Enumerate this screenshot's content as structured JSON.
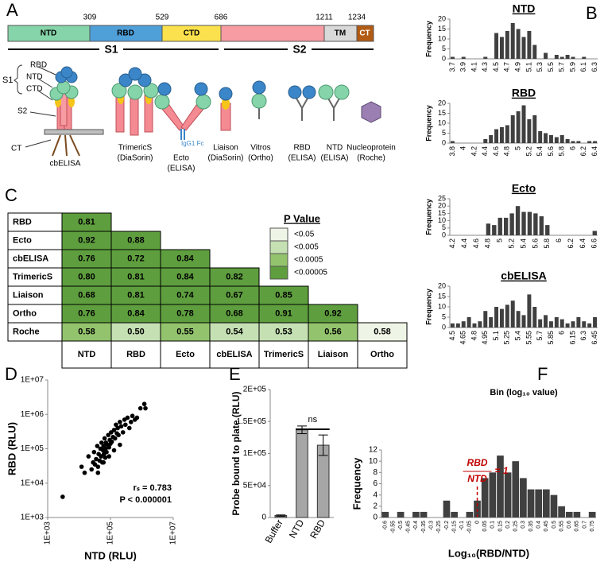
{
  "panel_labels": [
    "A",
    "B",
    "C",
    "D",
    "E",
    "F"
  ],
  "panel_a": {
    "residue_numbers": [
      309,
      529,
      686,
      1211,
      1234
    ],
    "domains": [
      "NTD",
      "RBD",
      "CTD",
      "TM",
      "CT"
    ],
    "regions": [
      "S1",
      "S2"
    ],
    "structure_labels": [
      "RBD",
      "NTD",
      "CTD",
      "S1",
      "S2",
      "CT"
    ],
    "fc_label": "IgG1 Fc",
    "assays": [
      {
        "name": "cbELISA"
      },
      {
        "name": "TrimericS",
        "maker": "(DiaSorin)"
      },
      {
        "name": "Ecto",
        "maker": "(ELISA)"
      },
      {
        "name": "Liaison",
        "maker": "(DiaSorin)"
      },
      {
        "name": "Vitros",
        "maker": "(Ortho)"
      },
      {
        "name": "RBD",
        "maker": "(ELISA)"
      },
      {
        "name": "NTD",
        "maker": "(ELISA)"
      },
      {
        "name": "Nucleoprotein",
        "maker": "(Roche)"
      }
    ]
  },
  "panel_c": {
    "columns": [
      "NTD",
      "RBD",
      "Ecto",
      "cbELISA",
      "TrimericS",
      "Liaison",
      "Ortho"
    ],
    "rows": [
      {
        "label": "RBD",
        "values": [
          "0.81"
        ],
        "colors": [
          "#5e9e3e"
        ]
      },
      {
        "label": "Ecto",
        "values": [
          "0.92",
          "0.88"
        ],
        "colors": [
          "#5e9e3e",
          "#5e9e3e"
        ]
      },
      {
        "label": "cbELISA",
        "values": [
          "0.76",
          "0.72",
          "0.84"
        ],
        "colors": [
          "#5e9e3e",
          "#5e9e3e",
          "#5e9e3e"
        ]
      },
      {
        "label": "TrimericS",
        "values": [
          "0.80",
          "0.81",
          "0.84",
          "0.82"
        ],
        "colors": [
          "#5e9e3e",
          "#5e9e3e",
          "#5e9e3e",
          "#5e9e3e"
        ]
      },
      {
        "label": "Liaison",
        "values": [
          "0.68",
          "0.81",
          "0.74",
          "0.67",
          "0.85"
        ],
        "colors": [
          "#5e9e3e",
          "#5e9e3e",
          "#5e9e3e",
          "#5e9e3e",
          "#5e9e3e"
        ]
      },
      {
        "label": "Ortho",
        "values": [
          "0.76",
          "0.84",
          "0.78",
          "0.68",
          "0.91",
          "0.92"
        ],
        "colors": [
          "#5e9e3e",
          "#5e9e3e",
          "#5e9e3e",
          "#5e9e3e",
          "#5e9e3e",
          "#5e9e3e"
        ]
      },
      {
        "label": "Roche",
        "values": [
          "0.58",
          "0.50",
          "0.55",
          "0.54",
          "0.53",
          "0.56",
          "0.58"
        ],
        "colors": [
          "#93c46d",
          "#c5e0b3",
          "#93c46d",
          "#c5e0b3",
          "#c5e0b3",
          "#93c46d",
          "#eef5e6"
        ]
      }
    ],
    "legend": {
      "title": "P Value",
      "items": [
        {
          "label": "<0.05",
          "color": "#eef5e6"
        },
        {
          "label": "<0.005",
          "color": "#c5e0b3"
        },
        {
          "label": "<0.0005",
          "color": "#93c46d"
        },
        {
          "label": "<0.00005",
          "color": "#5e9e3e"
        }
      ]
    }
  },
  "chart_data": [
    {
      "type": "bar",
      "title": "NTD",
      "y_label": "Frequency",
      "color": "#404040",
      "ylim": [
        0,
        20
      ],
      "yticks": [
        0,
        5,
        10,
        15,
        20
      ],
      "categories": [
        "3.7",
        null,
        "3.9",
        null,
        "4.1",
        null,
        "4.3",
        null,
        "4.5",
        null,
        "4.7",
        null,
        "4.9",
        null,
        "5.1",
        null,
        "5.3",
        null,
        "5.5",
        null,
        "5.7",
        null,
        "5.9",
        null,
        "6.1",
        null,
        "6.3"
      ],
      "values": [
        1,
        0,
        1,
        0,
        0,
        0,
        1,
        0,
        13,
        11,
        14,
        18,
        15,
        11,
        14,
        7,
        0,
        3,
        0,
        2,
        1,
        2,
        1,
        0,
        1,
        0,
        0
      ]
    },
    {
      "type": "bar",
      "title": "RBD",
      "y_label": "Frequency",
      "color": "#404040",
      "ylim": [
        0,
        20
      ],
      "yticks": [
        0,
        5,
        10,
        15,
        20
      ],
      "categories": [
        "3.8",
        null,
        "4",
        null,
        "4.2",
        null,
        "4.4",
        null,
        "4.6",
        null,
        "4.8",
        null,
        "5",
        null,
        "5.2",
        null,
        "5.4",
        null,
        "5.6",
        null,
        "5.8",
        null,
        "6",
        null,
        "6.2",
        null,
        "6.4"
      ],
      "values": [
        1,
        0,
        0,
        0,
        0,
        0,
        2,
        4,
        7,
        8,
        9,
        14,
        16,
        19,
        12,
        14,
        6,
        5,
        4,
        3,
        4,
        2,
        1,
        1,
        0,
        1,
        1
      ]
    },
    {
      "type": "bar",
      "title": "Ecto",
      "y_label": "Frequency",
      "color": "#404040",
      "ylim": [
        0,
        25
      ],
      "yticks": [
        0,
        5,
        10,
        15,
        20,
        25
      ],
      "categories": [
        "4.2",
        null,
        "4.4",
        null,
        "4.6",
        null,
        "4.8",
        null,
        "5",
        null,
        "5.2",
        null,
        "5.4",
        null,
        "5.6",
        null,
        "5.8",
        null,
        "6",
        null,
        "6.2",
        null,
        "6.4",
        null,
        "6.6"
      ],
      "values": [
        0,
        0,
        0,
        0,
        0,
        0,
        8,
        7,
        12,
        12,
        15,
        20,
        16,
        16,
        15,
        13,
        7,
        0,
        0,
        0,
        0,
        0,
        0,
        0,
        3
      ]
    },
    {
      "type": "bar",
      "title": "cbELISA",
      "y_label": "Frequency",
      "x_label": "Bin (log₁₀ value)",
      "color": "#404040",
      "ylim": [
        0,
        20
      ],
      "yticks": [
        0,
        5,
        10,
        15,
        20
      ],
      "categories": [
        "4.5",
        null,
        "4.65",
        null,
        "4.8",
        null,
        "4.95",
        null,
        "5.1",
        null,
        "5.25",
        null,
        "5.4",
        null,
        "5.55",
        null,
        "5.7",
        null,
        "5.85",
        null,
        "6",
        null,
        "6.15",
        null,
        "6.3",
        null,
        "6.45"
      ],
      "values": [
        2,
        2,
        3,
        5,
        2,
        3,
        8,
        5,
        10,
        9,
        11,
        13,
        8,
        6,
        16,
        10,
        4,
        6,
        3,
        5,
        4,
        2,
        3,
        5,
        3,
        2,
        5
      ]
    },
    {
      "type": "scatter",
      "x_label": "NTD (RLU)",
      "y_label": "RBD (RLU)",
      "color": "#000000",
      "xscale": "log",
      "yscale": "log",
      "annotations": [
        "rₛ = 0.783",
        "P < 0.000001"
      ],
      "xlim": [
        1000,
        10000000
      ],
      "ylim": [
        1000,
        10000000
      ],
      "xticks": [
        {
          "value": 1000,
          "label": "1E+03"
        },
        {
          "value": 100000,
          "label": "1E+05"
        },
        {
          "value": 10000000,
          "label": "1E+07"
        }
      ],
      "yticks": [
        {
          "value": 1000,
          "label": "1E+03"
        },
        {
          "value": 10000,
          "label": "1E+04"
        },
        {
          "value": 100000,
          "label": "1E+05"
        },
        {
          "value": 1000000,
          "label": "1E+06"
        },
        {
          "value": 10000000,
          "label": "1E+07"
        }
      ],
      "x": [
        3000,
        12000,
        15000,
        20000,
        25000,
        28000,
        30000,
        32000,
        35000,
        38000,
        40000,
        42000,
        45000,
        48000,
        50000,
        52000,
        55000,
        58000,
        60000,
        62000,
        65000,
        68000,
        70000,
        72000,
        75000,
        80000,
        85000,
        90000,
        95000,
        100000,
        105000,
        110000,
        120000,
        130000,
        140000,
        150000,
        160000,
        170000,
        180000,
        200000,
        220000,
        250000,
        280000,
        300000,
        350000,
        400000,
        450000,
        500000,
        600000,
        700000,
        900000,
        1200000,
        1300000,
        40000,
        60000,
        90000,
        130000,
        200000
      ],
      "values": [
        4000,
        30000,
        20000,
        60000,
        25000,
        40000,
        80000,
        35000,
        50000,
        120000,
        30000,
        70000,
        45000,
        100000,
        60000,
        150000,
        40000,
        90000,
        120000,
        70000,
        200000,
        55000,
        100000,
        150000,
        80000,
        130000,
        250000,
        110000,
        180000,
        140000,
        300000,
        160000,
        220000,
        350000,
        200000,
        500000,
        280000,
        400000,
        250000,
        600000,
        450000,
        300000,
        700000,
        500000,
        800000,
        400000,
        600000,
        900000,
        700000,
        800000,
        1500000,
        2000000,
        1500000,
        20000,
        40000,
        60000,
        90000,
        130000
      ]
    },
    {
      "type": "bar",
      "y_label": "Probe bound to plate (RLU)",
      "color": "#a6a6a6",
      "annotations": [
        "ns"
      ],
      "categories": [
        "Buffer",
        "NTD",
        "RBD"
      ],
      "values": [
        3000,
        137000,
        113000
      ],
      "errors": [
        1000,
        6000,
        16000
      ],
      "ylim": [
        0,
        200000
      ],
      "yticks": [
        0,
        {
          "value": 50000,
          "label": "5E+04"
        },
        {
          "value": 100000,
          "label": "1E+05"
        },
        {
          "value": 150000,
          "label": "1.5E+05"
        },
        {
          "value": 200000,
          "label": "2E+05"
        }
      ]
    },
    {
      "type": "bar",
      "y_label": "Frequency",
      "x_label": "Log₁₀(RBD/NTD)",
      "color": "#404040",
      "ylim": [
        0,
        12
      ],
      "yticks": [
        0,
        2,
        4,
        6,
        8,
        10,
        12
      ],
      "annotations": [
        "RBD",
        "NTD",
        "= 1"
      ],
      "categories": [
        "-0.6",
        "-0.55",
        "-0.5",
        "-0.45",
        "-0.4",
        "-0.35",
        "-0.3",
        "-0.25",
        "-0.2",
        "-0.15",
        "-0.1",
        "-0.05",
        "0",
        "0.05",
        "0.1",
        "0.15",
        "0.2",
        "0.25",
        "0.3",
        "0.35",
        "0.4",
        "0.45",
        "0.5",
        "0.55",
        "0.6",
        "0.65",
        "0.7",
        "0.75"
      ],
      "values": [
        1,
        0,
        1,
        0,
        1,
        1,
        0,
        0,
        3,
        1,
        0,
        1,
        3,
        7,
        8,
        11,
        8,
        10,
        7,
        5,
        5,
        5,
        4,
        2,
        1,
        1,
        0,
        1
      ]
    }
  ]
}
